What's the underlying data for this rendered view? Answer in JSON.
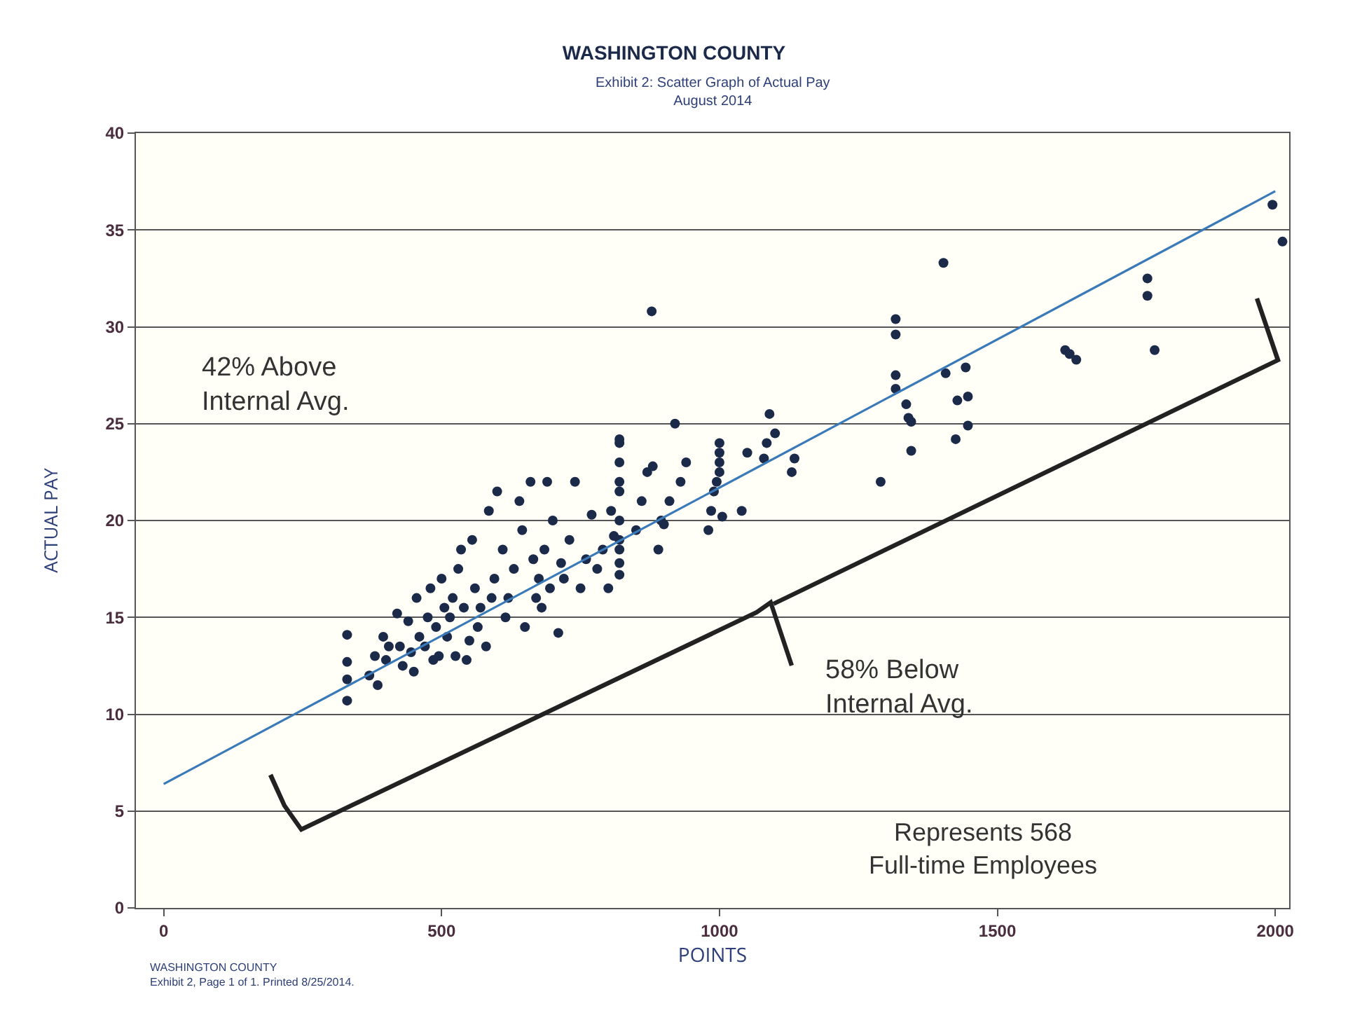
{
  "chart_data": {
    "type": "scatter",
    "title": "WASHINGTON COUNTY",
    "subtitle": "Exhibit 2: Scatter Graph of Actual Pay\nAugust 2014",
    "xlabel": "POINTS",
    "ylabel": "ACTUAL PAY",
    "xlim": [
      -50,
      2025
    ],
    "ylim": [
      0,
      40
    ],
    "xticks": [
      0,
      500,
      1000,
      1500,
      2000
    ],
    "yticks": [
      0,
      5,
      10,
      15,
      20,
      25,
      30,
      35,
      40
    ],
    "grid": "y",
    "marker": "circle",
    "series": [
      {
        "color": "#1c2a4a",
        "x": [
          330,
          330,
          330,
          330,
          370,
          380,
          385,
          395,
          400,
          405,
          420,
          425,
          430,
          440,
          445,
          450,
          455,
          460,
          470,
          475,
          480,
          485,
          490,
          495,
          500,
          505,
          510,
          515,
          520,
          525,
          530,
          535,
          540,
          545,
          550,
          555,
          560,
          565,
          570,
          580,
          585,
          590,
          595,
          600,
          610,
          615,
          620,
          630,
          640,
          645,
          650,
          660,
          665,
          670,
          675,
          680,
          685,
          690,
          695,
          700,
          710,
          715,
          720,
          730,
          740,
          750,
          760,
          770,
          780,
          790,
          800,
          805,
          810,
          820,
          820,
          820,
          820,
          820,
          820,
          820,
          820,
          820,
          820,
          850,
          860,
          870,
          878,
          880,
          890,
          895,
          900,
          910,
          920,
          930,
          940,
          980,
          985,
          990,
          995,
          1000,
          1000,
          1000,
          1000,
          1005,
          1040,
          1050,
          1080,
          1085,
          1090,
          1100,
          1130,
          1135,
          1290,
          1317,
          1317,
          1317,
          1317,
          1336,
          1340,
          1345,
          1345,
          1403,
          1407,
          1425,
          1428,
          1443,
          1447,
          1447,
          1622,
          1630,
          1642,
          1770,
          1770,
          1783,
          1995,
          2013
        ],
        "values": [
          14.1,
          12.7,
          11.8,
          10.7,
          12,
          13,
          11.5,
          14,
          12.8,
          13.5,
          15.2,
          13.5,
          12.5,
          14.8,
          13.2,
          12.2,
          16,
          14,
          13.5,
          15,
          16.5,
          12.8,
          14.5,
          13,
          17,
          15.5,
          14,
          15,
          16,
          13,
          17.5,
          18.5,
          15.5,
          12.8,
          13.8,
          19,
          16.5,
          14.5,
          15.5,
          13.5,
          20.5,
          16,
          17,
          21.5,
          18.5,
          15,
          16,
          17.5,
          21,
          19.5,
          14.5,
          22,
          18,
          16,
          17,
          15.5,
          18.5,
          22,
          16.5,
          20,
          14.2,
          17.8,
          17,
          19,
          22,
          16.5,
          18,
          20.3,
          17.5,
          18.5,
          16.5,
          20.5,
          19.2,
          17.8,
          18.5,
          19,
          20,
          21.5,
          22,
          23,
          24.2,
          24,
          17.2,
          19.5,
          21,
          22.5,
          30.8,
          22.8,
          18.5,
          20,
          19.8,
          21,
          25,
          22,
          23,
          19.5,
          20.5,
          21.5,
          22,
          22.5,
          23,
          23.5,
          24,
          20.2,
          20.5,
          23.5,
          23.2,
          24,
          25.5,
          24.5,
          22.5,
          23.2,
          22,
          30.4,
          29.6,
          27.5,
          26.8,
          26,
          25.3,
          25.1,
          23.6,
          33.3,
          27.6,
          24.2,
          26.2,
          27.9,
          26.4,
          24.9,
          28.8,
          28.6,
          28.3,
          32.5,
          31.6,
          28.8,
          36.3,
          34.4
        ]
      },
      {
        "type": "line",
        "color": "#3a7ab8",
        "line_style": "solid",
        "marker": "none",
        "x": [
          0,
          2000
        ],
        "values": [
          6.4,
          37.0
        ]
      }
    ],
    "annotations": [
      "42% Above\nInternal Avg.",
      "58% Below\nInternal Avg.",
      "Represents 568\nFull-time Employees",
      "WASHINGTON COUNTY\nExhibit 2, Page 1 of 1. Printed 8/25/2014."
    ]
  }
}
